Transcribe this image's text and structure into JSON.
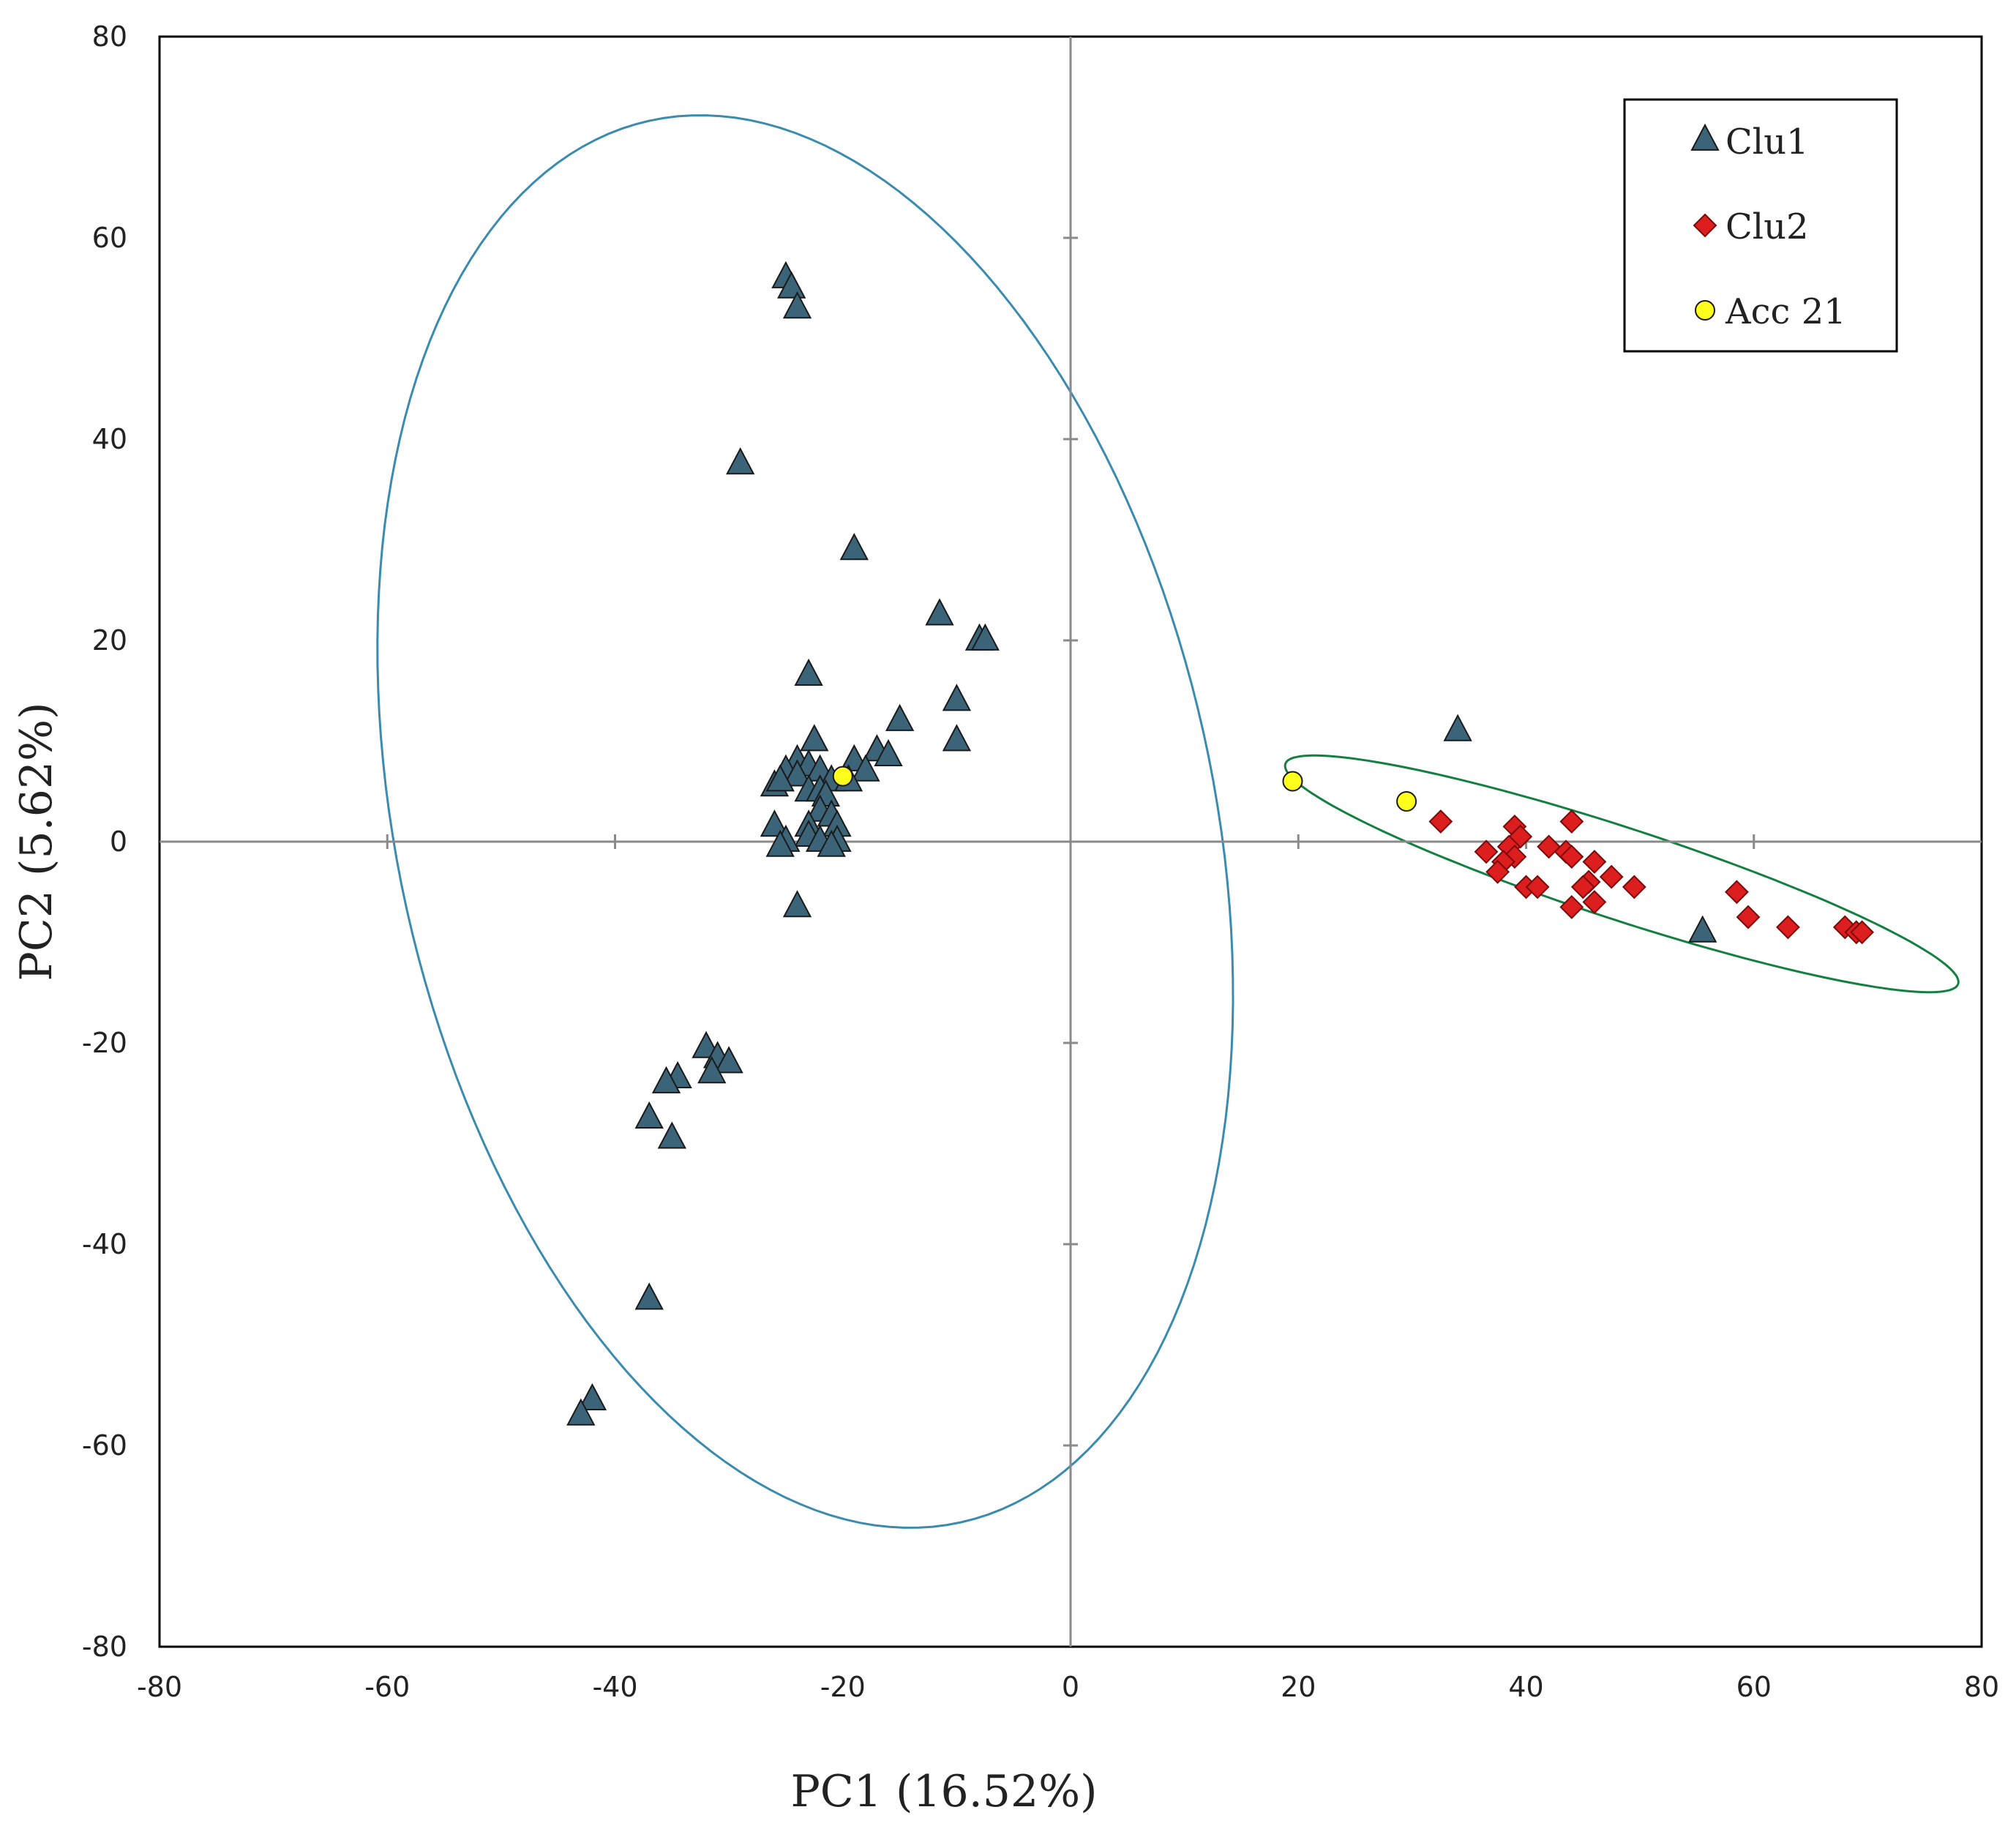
{
  "chart_data": {
    "type": "scatter",
    "title": "",
    "xlabel": "PC1 (16.52%)",
    "ylabel": "PC2 (5.62%)",
    "xlim": [
      -80,
      80
    ],
    "ylim": [
      -80,
      80
    ],
    "xticks": [
      -80,
      -60,
      -40,
      -20,
      0,
      20,
      40,
      60,
      80
    ],
    "yticks": [
      -80,
      -60,
      -40,
      -20,
      0,
      20,
      40,
      60,
      80
    ],
    "grid": false,
    "legend_position": "top-right",
    "series": [
      {
        "name": "Clu1",
        "marker": "triangle",
        "color": "#3b6478",
        "points": [
          [
            -25,
            56
          ],
          [
            -24.5,
            55
          ],
          [
            -24,
            53
          ],
          [
            -29,
            37.5
          ],
          [
            -19,
            29
          ],
          [
            -11.5,
            22.5
          ],
          [
            -8,
            20
          ],
          [
            -7.5,
            20
          ],
          [
            -10,
            14
          ],
          [
            -10,
            10
          ],
          [
            -23,
            16.5
          ],
          [
            -15,
            12
          ],
          [
            -22.5,
            10
          ],
          [
            -17,
            9
          ],
          [
            -16,
            8.5
          ],
          [
            -19,
            8
          ],
          [
            -18,
            7
          ],
          [
            -24,
            8
          ],
          [
            -23,
            7.5
          ],
          [
            -25,
            7
          ],
          [
            -22,
            7
          ],
          [
            -24,
            6.5
          ],
          [
            -21,
            6
          ],
          [
            -19.5,
            6
          ],
          [
            -26,
            5.5
          ],
          [
            -25.5,
            6
          ],
          [
            -23,
            5
          ],
          [
            -22,
            5
          ],
          [
            -21.5,
            4.5
          ],
          [
            -22,
            3
          ],
          [
            -21,
            2.5
          ],
          [
            -23,
            1.5
          ],
          [
            -26,
            1.5
          ],
          [
            -20.5,
            1.5
          ],
          [
            -23,
            0.5
          ],
          [
            -25,
            0
          ],
          [
            -22,
            0
          ],
          [
            -20.5,
            0
          ],
          [
            -25.5,
            -0.5
          ],
          [
            -21,
            -0.5
          ],
          [
            -24,
            -6.5
          ],
          [
            -32,
            -20.5
          ],
          [
            -31,
            -21.5
          ],
          [
            -30,
            -22
          ],
          [
            -31.5,
            -23
          ],
          [
            -34.5,
            -23.5
          ],
          [
            -35.5,
            -24
          ],
          [
            -37,
            -27.5
          ],
          [
            -35,
            -29.5
          ],
          [
            -37,
            -45.5
          ],
          [
            -42,
            -55.5
          ],
          [
            -43,
            -57
          ],
          [
            34,
            11
          ],
          [
            55.5,
            -9
          ]
        ]
      },
      {
        "name": "Clu2",
        "marker": "diamond",
        "color": "#dc1e1e",
        "points": [
          [
            32.5,
            2
          ],
          [
            44,
            2
          ],
          [
            39,
            1.5
          ],
          [
            39.5,
            0.5
          ],
          [
            38.5,
            -0.5
          ],
          [
            42,
            -0.5
          ],
          [
            36.5,
            -1
          ],
          [
            43.5,
            -1
          ],
          [
            39,
            -1.5
          ],
          [
            44,
            -1.5
          ],
          [
            38,
            -2
          ],
          [
            46,
            -2
          ],
          [
            37.5,
            -3
          ],
          [
            47.5,
            -3.5
          ],
          [
            45.5,
            -4
          ],
          [
            40,
            -4.5
          ],
          [
            41,
            -4.5
          ],
          [
            45,
            -4.5
          ],
          [
            49.5,
            -4.5
          ],
          [
            58.5,
            -5
          ],
          [
            44,
            -6.5
          ],
          [
            46,
            -6
          ],
          [
            59.5,
            -7.5
          ],
          [
            63,
            -8.5
          ],
          [
            68,
            -8.5
          ],
          [
            69,
            -9
          ],
          [
            69.5,
            -9
          ]
        ]
      },
      {
        "name": "Acc 21",
        "marker": "circle",
        "color": "#ffff1e",
        "points": [
          [
            -20,
            6.5
          ],
          [
            19.5,
            6
          ],
          [
            29.5,
            4
          ]
        ]
      }
    ],
    "ellipses": [
      {
        "name": "Clu1 ellipse",
        "color": "#3a8bb0",
        "cx": -23.3,
        "cy": 2,
        "rx": 71,
        "ry": 36,
        "angle_deg": -79.9
      },
      {
        "name": "Clu2 ellipse",
        "color": "#148040",
        "cx": 48.4,
        "cy": -3.2,
        "rx": 31.5,
        "ry": 4.5,
        "angle_deg": -20.4
      }
    ],
    "legend": [
      {
        "label": "Clu1",
        "marker": "triangle",
        "color": "#3b6478"
      },
      {
        "label": "Clu2",
        "marker": "diamond",
        "color": "#dc1e1e"
      },
      {
        "label": "Acc 21",
        "marker": "circle",
        "color": "#ffff1e"
      }
    ],
    "axes_color": "#000000",
    "zero_line_color": "#8a8a8a"
  }
}
